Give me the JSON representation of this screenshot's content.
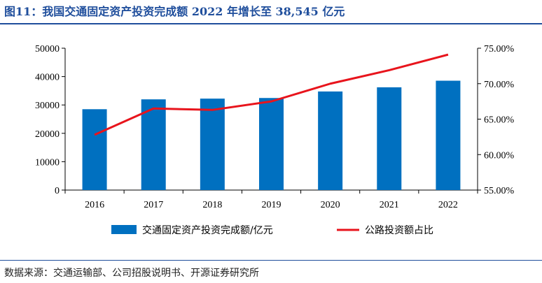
{
  "header": {
    "title": "图11：我国交通固定资产投资完成额 2022 年增长至 38,545 亿元"
  },
  "footer": {
    "source": "数据来源：交通运输部、公司招股说明书、开源证券研究所"
  },
  "colors": {
    "bar": "#0070c0",
    "line": "#e8141c",
    "title": "#1f4e9c"
  },
  "chart_data": {
    "type": "bar",
    "categories": [
      "2016",
      "2017",
      "2018",
      "2019",
      "2020",
      "2021",
      "2022"
    ],
    "series": [
      {
        "name": "交通固定资产投资完成额/亿元",
        "type": "bar",
        "axis": "left",
        "values": [
          28500,
          31975,
          32235,
          32451,
          34752,
          36220,
          38545
        ]
      },
      {
        "name": "公路投资额占比",
        "type": "line",
        "axis": "right",
        "values": [
          62.8,
          66.5,
          66.3,
          67.5,
          70.0,
          71.9,
          74.1
        ]
      }
    ],
    "y_left": {
      "min": 0,
      "max": 50000,
      "ticks": [
        "0",
        "10000",
        "20000",
        "30000",
        "40000",
        "50000"
      ]
    },
    "y_right": {
      "min": 55,
      "max": 75,
      "ticks": [
        "55.00%",
        "60.00%",
        "65.00%",
        "70.00%",
        "75.00%"
      ]
    },
    "legend": {
      "placement": "bottom"
    },
    "grid": false
  }
}
